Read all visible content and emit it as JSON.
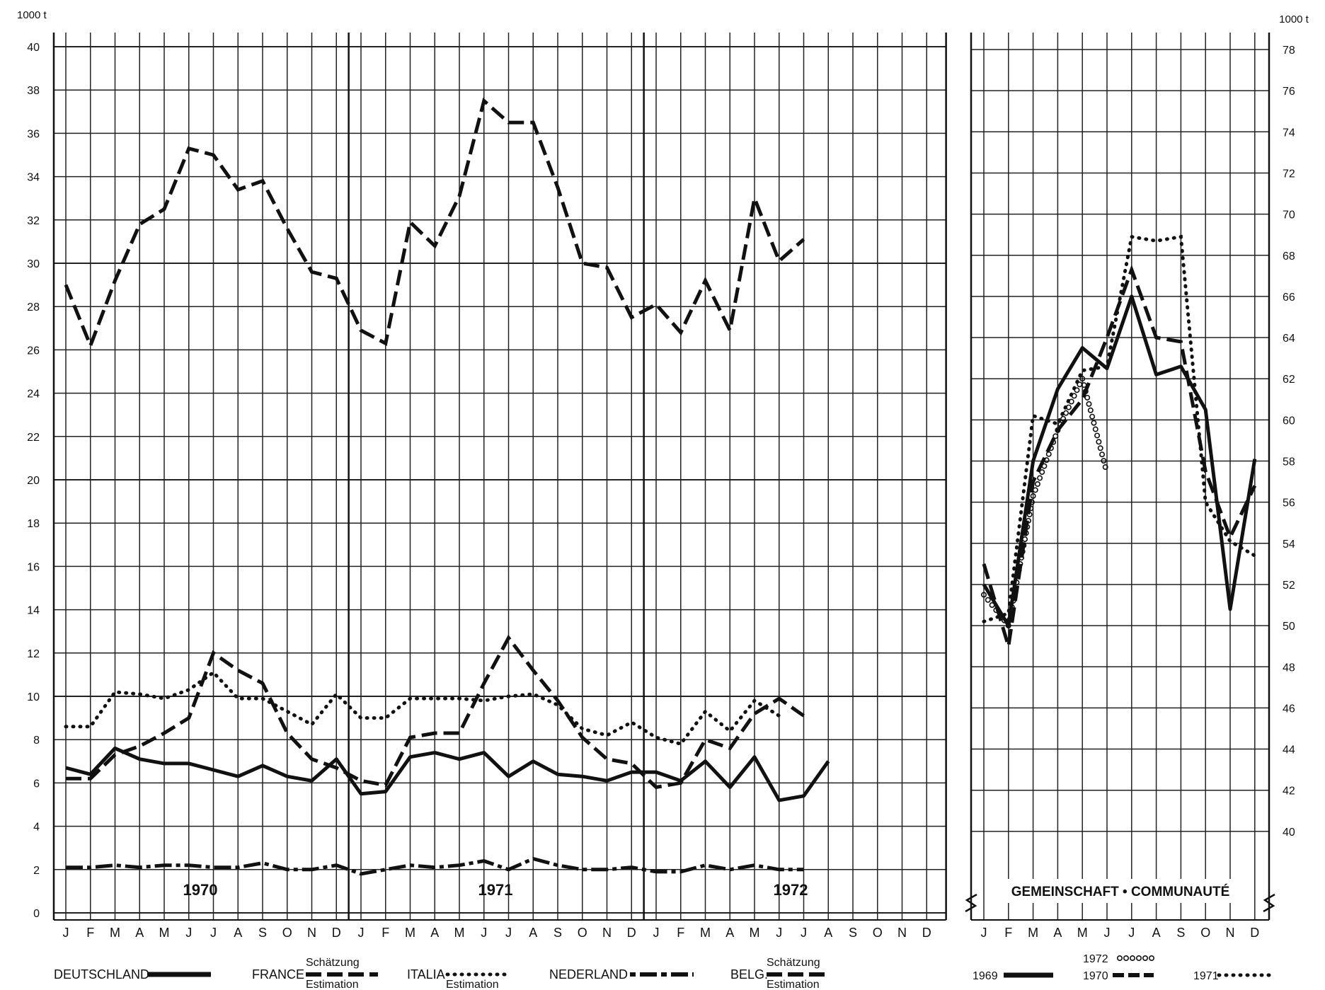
{
  "chart_data": [
    {
      "type": "line",
      "panel": "left",
      "unit_label": "1000 t",
      "ylim": [
        0,
        40
      ],
      "yticks": [
        0,
        2,
        4,
        6,
        8,
        10,
        12,
        14,
        16,
        18,
        20,
        22,
        24,
        26,
        28,
        30,
        32,
        34,
        36,
        38,
        40
      ],
      "year_labels": [
        "1970",
        "1971",
        "1972"
      ],
      "months": [
        "J",
        "F",
        "M",
        "A",
        "M",
        "J",
        "J",
        "A",
        "S",
        "O",
        "N",
        "D",
        "J",
        "F",
        "M",
        "A",
        "M",
        "J",
        "J",
        "A",
        "S",
        "O",
        "N",
        "D",
        "J",
        "F",
        "M",
        "A",
        "M",
        "J",
        "J",
        "A",
        "S",
        "O",
        "N",
        "D"
      ],
      "grid": true,
      "series": [
        {
          "name": "FRANCE",
          "style": "dashed",
          "values": [
            29.0,
            26.2,
            29.2,
            31.8,
            32.5,
            35.3,
            35.0,
            33.4,
            33.8,
            31.6,
            29.6,
            29.3,
            26.9,
            26.3,
            31.9,
            30.8,
            33.1,
            37.5,
            36.5,
            36.5,
            33.5,
            30.0,
            29.8,
            27.5,
            28.1,
            26.8,
            29.2,
            26.9,
            33.0,
            30.1,
            31.1
          ]
        },
        {
          "name": "BELG.",
          "style": "dashed",
          "values": [
            6.2,
            6.2,
            7.3,
            7.7,
            8.3,
            9.0,
            12.0,
            11.2,
            10.6,
            8.3,
            7.1,
            6.7,
            6.1,
            5.9,
            8.1,
            8.3,
            8.3,
            10.6,
            12.7,
            11.2,
            9.8,
            8.1,
            7.1,
            6.9,
            5.8,
            6.0,
            8.0,
            7.6,
            9.2,
            9.9,
            9.1
          ]
        },
        {
          "name": "ITALIA",
          "style": "dotted",
          "values": [
            8.6,
            8.6,
            10.2,
            10.1,
            9.9,
            10.3,
            11.1,
            9.9,
            9.9,
            9.3,
            8.7,
            10.1,
            9.0,
            9.0,
            9.9,
            9.9,
            9.9,
            9.8,
            10.0,
            10.1,
            9.6,
            8.5,
            8.2,
            8.8,
            8.1,
            7.8,
            9.3,
            8.4,
            9.8,
            9.1
          ]
        },
        {
          "name": "DEUTSCHLAND",
          "style": "solid",
          "values": [
            6.7,
            6.4,
            7.6,
            7.1,
            6.9,
            6.9,
            6.6,
            6.3,
            6.8,
            6.3,
            6.1,
            7.1,
            5.5,
            5.6,
            7.2,
            7.4,
            7.1,
            7.4,
            6.3,
            7.0,
            6.4,
            6.3,
            6.1,
            6.5,
            6.5,
            6.1,
            7.0,
            5.8,
            7.2,
            5.2,
            5.4,
            7.0
          ]
        },
        {
          "name": "NEDERLAND",
          "style": "dash-dot",
          "values": [
            2.1,
            2.1,
            2.2,
            2.1,
            2.2,
            2.2,
            2.1,
            2.1,
            2.3,
            2.0,
            2.0,
            2.2,
            1.8,
            2.0,
            2.2,
            2.1,
            2.2,
            2.4,
            2.0,
            2.5,
            2.2,
            2.0,
            2.0,
            2.1,
            1.9,
            1.9,
            2.2,
            2.0,
            2.2,
            2.0,
            2.0
          ]
        }
      ]
    },
    {
      "type": "line",
      "panel": "right",
      "title": "GEMEINSCHAFT • COMMUNAUTÉ",
      "unit_label": "1000 t",
      "ylim": [
        38,
        78
      ],
      "yticks": [
        40,
        42,
        44,
        46,
        48,
        50,
        52,
        54,
        56,
        58,
        60,
        62,
        64,
        66,
        68,
        70,
        72,
        74,
        76,
        78
      ],
      "months": [
        "J",
        "F",
        "M",
        "A",
        "M",
        "J",
        "J",
        "A",
        "S",
        "O",
        "N",
        "D"
      ],
      "grid": true,
      "series": [
        {
          "name": "1969",
          "style": "solid",
          "values": [
            52.0,
            50.0,
            58.0,
            61.5,
            63.5,
            62.5,
            66.0,
            62.2,
            62.6,
            60.5,
            50.8,
            58.1
          ]
        },
        {
          "name": "1970",
          "style": "dashed",
          "values": [
            53.0,
            49.0,
            57.0,
            59.5,
            61.0,
            64.0,
            67.3,
            64.0,
            63.8,
            57.5,
            54.3,
            56.8
          ]
        },
        {
          "name": "1971",
          "style": "dotted",
          "values": [
            50.2,
            50.6,
            60.2,
            59.8,
            62.4,
            62.6,
            68.9,
            68.7,
            68.9,
            56.0,
            54.1,
            53.4
          ]
        },
        {
          "name": "1972",
          "style": "circles",
          "values": [
            51.5,
            50.0,
            56.3,
            59.5,
            62.0,
            57.4
          ]
        }
      ]
    }
  ],
  "legend": {
    "deutschland": "DEUTSCHLAND",
    "france": "FRANCE",
    "france_note_de": "Schätzung",
    "france_note_fr": "Estimation",
    "italia": "ITALIA",
    "italia_note": "Estimation",
    "nederland": "NEDERLAND",
    "belg": "BELG.",
    "belg_note_de": "Schätzung",
    "belg_note_fr": "Estimation",
    "y1969": "1969",
    "y1970": "1970",
    "y1971": "1971",
    "y1972": "1972"
  }
}
